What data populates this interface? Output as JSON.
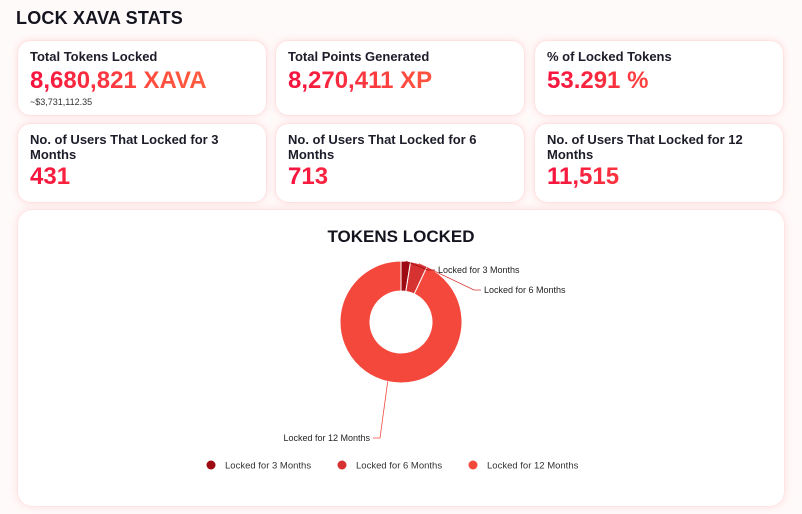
{
  "page": {
    "title": "LOCK XAVA STATS"
  },
  "stats": [
    {
      "label": "Total Tokens Locked",
      "value": "8,680,821 XAVA",
      "sub": "~$3,731,112.35"
    },
    {
      "label": "Total Points Generated",
      "value": "8,270,411 XP"
    },
    {
      "label": "% of Locked Tokens",
      "value": "53.291 %"
    },
    {
      "label": "No. of Users That Locked for 3 Months",
      "value": "431"
    },
    {
      "label": "No. of Users That Locked for 6 Months",
      "value": "713"
    },
    {
      "label": "No. of Users That Locked for 12 Months",
      "value": "11,515"
    }
  ],
  "colors": {
    "accent": "#f5123f",
    "accent_end": "#ff6a3c",
    "card_shadow": "#ff6e6e"
  },
  "chart_data": {
    "type": "pie",
    "title": "TOKENS LOCKED",
    "categories": [
      "Locked for 3 Months",
      "Locked for 6 Months",
      "Locked for 12 Months"
    ],
    "values": [
      2.5,
      4.5,
      93.0
    ],
    "colors": [
      "#9e0a12",
      "#d73232",
      "#f5483c"
    ],
    "donut": true,
    "legend": "bottom"
  }
}
